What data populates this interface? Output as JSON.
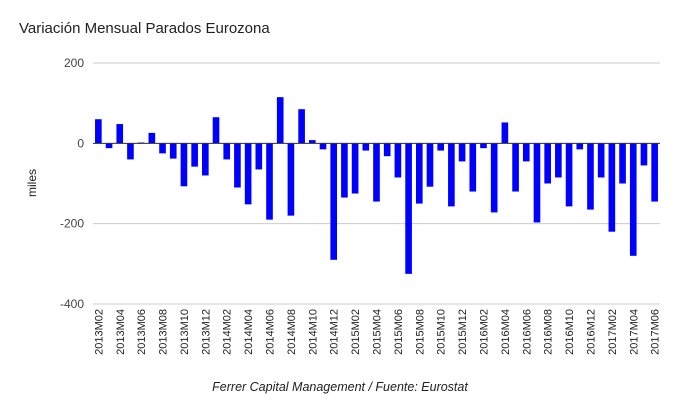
{
  "chart_data": {
    "type": "bar",
    "title": "Variación Mensual Parados Eurozona",
    "caption": "Ferrer Capital Management / Fuente: Eurostat",
    "xlabel": "",
    "ylabel": "miles",
    "ylim": [
      -400,
      200
    ],
    "yticks": [
      200,
      0,
      -200,
      -400
    ],
    "bar_color": "#0000ff",
    "categories": [
      "2013M02",
      "2013M03",
      "2013M04",
      "2013M05",
      "2013M06",
      "2013M07",
      "2013M08",
      "2013M09",
      "2013M10",
      "2013M11",
      "2013M12",
      "2014M01",
      "2014M02",
      "2014M03",
      "2014M04",
      "2014M05",
      "2014M06",
      "2014M07",
      "2014M08",
      "2014M09",
      "2014M10",
      "2014M11",
      "2014M12",
      "2015M01",
      "2015M02",
      "2015M03",
      "2015M04",
      "2015M05",
      "2015M06",
      "2015M07",
      "2015M08",
      "2015M09",
      "2015M10",
      "2015M11",
      "2015M12",
      "2016M01",
      "2016M02",
      "2016M03",
      "2016M04",
      "2016M05",
      "2016M06",
      "2016M07",
      "2016M08",
      "2016M09",
      "2016M10",
      "2016M11",
      "2016M12",
      "2017M01",
      "2017M02",
      "2017M03",
      "2017M04",
      "2017M05",
      "2017M06"
    ],
    "xtick_labels": [
      "2013M02",
      "2013M04",
      "2013M06",
      "2013M08",
      "2013M10",
      "2013M12",
      "2014M02",
      "2014M04",
      "2014M06",
      "2014M08",
      "2014M10",
      "2014M12",
      "2015M02",
      "2015M04",
      "2015M06",
      "2015M08",
      "2015M10",
      "2015M12",
      "2016M02",
      "2016M04",
      "2016M06",
      "2016M08",
      "2016M10",
      "2016M12",
      "2017M02",
      "2017M04",
      "2017M06"
    ],
    "values": [
      60,
      -12,
      48,
      -40,
      2,
      26,
      -25,
      -38,
      -107,
      -58,
      -80,
      65,
      -40,
      -110,
      -152,
      -65,
      -190,
      115,
      -180,
      85,
      8,
      -15,
      -290,
      -135,
      -125,
      -18,
      -145,
      -32,
      -85,
      -325,
      -150,
      -108,
      -18,
      -157,
      -45,
      -120,
      -12,
      -172,
      52,
      -120,
      -45,
      -197,
      -100,
      -85,
      -157,
      -15,
      -165,
      -85,
      -220,
      -100,
      -280,
      -55,
      -145
    ]
  }
}
